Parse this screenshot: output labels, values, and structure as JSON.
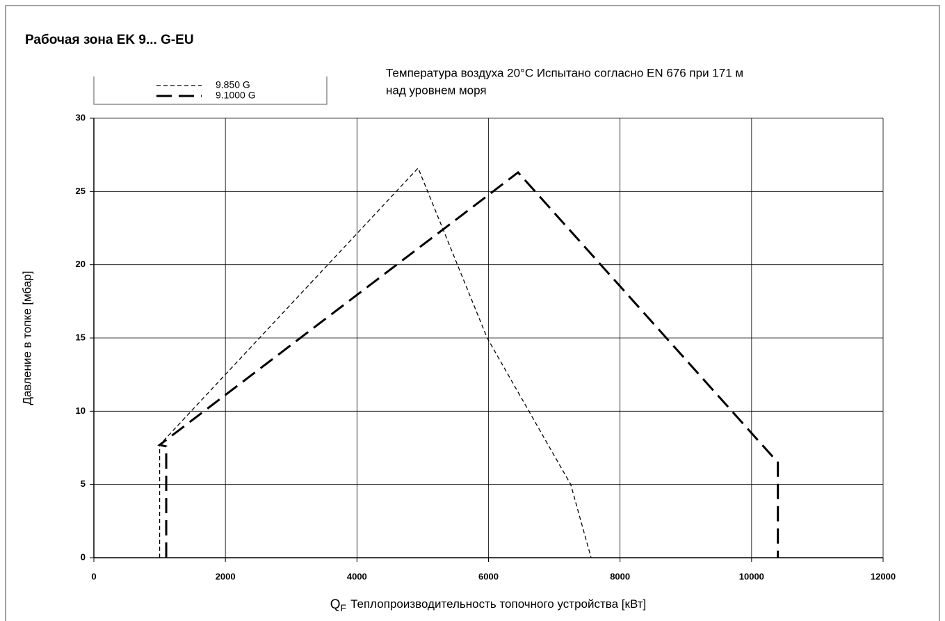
{
  "chart_data": {
    "type": "line",
    "title": "Рабочая зона EK 9... G-EU",
    "annotation": [
      "Температура воздуха 20°C Испытано согласно EN 676 при 171 м",
      "над уровнем моря"
    ],
    "ylabel": "Давление в топке [мбар]",
    "xlabel_symbol": "Q",
    "xlabel_subscript": "F",
    "xlabel": "Теплопроизводительность топочного устройства [кВт]",
    "xlim": [
      0,
      12000
    ],
    "xticks": [
      0,
      2000,
      4000,
      6000,
      8000,
      10000,
      12000
    ],
    "ylim": [
      0,
      30
    ],
    "yticks": [
      0,
      5,
      10,
      15,
      20,
      25,
      30
    ],
    "grid": true,
    "legend": "top-left",
    "series": [
      {
        "name": "9.850 G",
        "color": "#000000",
        "linestyle": "short-dash",
        "linewidth": 1.3,
        "x": [
          1000,
          1000,
          4930,
          5980,
          7250,
          7560
        ],
        "values": [
          0,
          7.7,
          26.6,
          15,
          5,
          0
        ]
      },
      {
        "name": "9.1000 G",
        "color": "#000000",
        "linestyle": "long-dash",
        "linewidth": 3,
        "x": [
          1100,
          1100,
          1000,
          6450,
          10400,
          10400
        ],
        "values": [
          0,
          7.6,
          7.7,
          26.3,
          6.5,
          0
        ]
      }
    ]
  }
}
